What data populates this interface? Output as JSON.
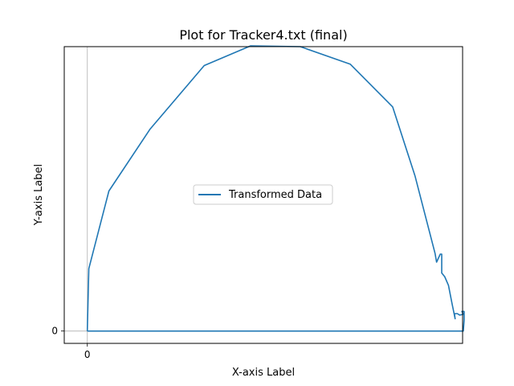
{
  "chart_data": {
    "type": "line",
    "title": "Plot for Tracker4.txt (final)",
    "xlabel": "X-axis Label",
    "ylabel": "Y-axis Label",
    "xlim": [
      -31,
      504
    ],
    "ylim": [
      -17,
      392
    ],
    "x_ticks": [
      0
    ],
    "y_ticks": [
      0
    ],
    "x_tick_labels": [
      "0"
    ],
    "y_tick_labels": [
      "0"
    ],
    "grid": false,
    "zero_lines": true,
    "legend": {
      "position": "center",
      "entries": [
        "Transformed Data"
      ]
    },
    "series": [
      {
        "name": "Transformed Data",
        "color": "#1f77b4",
        "x": [
          0,
          2,
          29,
          84,
          157,
          219,
          286,
          353,
          410,
          440,
          467,
          469,
          474,
          476,
          476,
          480,
          485,
          490,
          494,
          493,
          497,
          500,
          505,
          503,
          506,
          506,
          505,
          0
        ],
        "y": [
          0,
          86,
          193,
          278,
          366,
          393,
          392,
          368,
          309,
          214,
          107,
          95,
          106,
          106,
          80,
          75,
          63,
          37,
          17,
          24,
          24,
          22,
          23,
          27,
          27,
          15,
          0,
          0
        ]
      }
    ]
  }
}
